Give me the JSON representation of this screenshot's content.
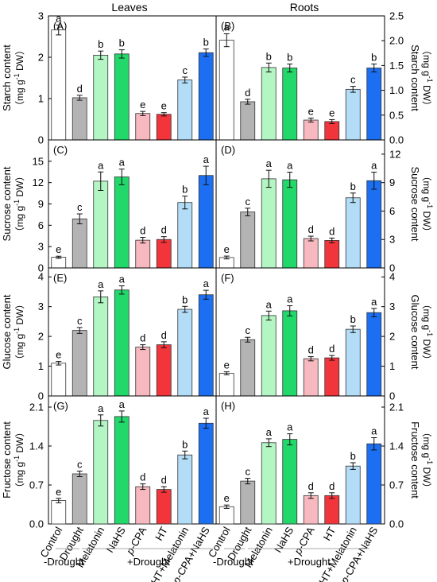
{
  "column_titles": [
    "Leaves",
    "Roots"
  ],
  "categories": [
    "Control",
    "Drought",
    "Melatonin",
    "NaHS",
    "p-CPA",
    "HT",
    "HT+Melatonin",
    "p-CPA+NaHS"
  ],
  "category_italic_prefix": [
    "",
    "",
    "",
    "",
    "p",
    "",
    "",
    "p"
  ],
  "bar_colors": [
    "#ffffff",
    "#b3b3b3",
    "#b3f5c3",
    "#22d86a",
    "#f7b9bf",
    "#f2343b",
    "#b3dcf7",
    "#1c6ff2"
  ],
  "bottom_labels": {
    "minus": "-Drought",
    "plus": "+Drought"
  },
  "chart_data": [
    {
      "type": "bar",
      "panel": "(A)",
      "organ": "Leaves",
      "ylabel": "Starch content",
      "unit_prefix": "mg g",
      "unit_exp": "-1",
      "unit_suffix": " DW",
      "ylim": [
        0,
        3.0
      ],
      "yticks": [
        0,
        1,
        2,
        3
      ],
      "tick_labels": [
        "0",
        "1",
        "2",
        "3"
      ],
      "axis_side": "left",
      "values": [
        2.66,
        1.02,
        2.05,
        2.08,
        0.64,
        0.62,
        1.45,
        2.11
      ],
      "errors": [
        0.12,
        0.06,
        0.1,
        0.1,
        0.05,
        0.04,
        0.07,
        0.09
      ],
      "letters": [
        "a",
        "d",
        "b",
        "b",
        "e",
        "e",
        "c",
        "b"
      ]
    },
    {
      "type": "bar",
      "panel": "(B)",
      "organ": "Roots",
      "ylabel": "Starch content",
      "unit_prefix": "mg g",
      "unit_exp": "-1",
      "unit_suffix": " DW",
      "ylim": [
        0,
        2.5
      ],
      "yticks": [
        0,
        0.5,
        1.0,
        1.5,
        2.0,
        2.5
      ],
      "tick_labels": [
        "0.0",
        "0.5",
        "1.0",
        "1.5",
        "2.0",
        "2.5"
      ],
      "axis_side": "right",
      "values": [
        2.01,
        0.77,
        1.46,
        1.45,
        0.4,
        0.37,
        1.02,
        1.45
      ],
      "errors": [
        0.13,
        0.05,
        0.09,
        0.08,
        0.04,
        0.04,
        0.06,
        0.08
      ],
      "letters": [
        "a",
        "d",
        "b",
        "b",
        "e",
        "e",
        "c",
        "b"
      ]
    },
    {
      "type": "bar",
      "panel": "(C)",
      "organ": "Leaves",
      "ylabel": "Sucrose content",
      "unit_prefix": "mg g",
      "unit_exp": "-1",
      "unit_suffix": " DW",
      "ylim": [
        0,
        18
      ],
      "yticks": [
        0,
        3,
        6,
        9,
        12,
        15
      ],
      "tick_labels": [
        "0",
        "3",
        "6",
        "9",
        "12",
        "15"
      ],
      "axis_side": "left",
      "values": [
        1.5,
        6.9,
        12.2,
        12.8,
        3.9,
        4.0,
        9.2,
        13.0
      ],
      "errors": [
        0.15,
        0.7,
        1.3,
        1.1,
        0.4,
        0.4,
        0.9,
        1.3
      ],
      "letters": [
        "e",
        "c",
        "a",
        "a",
        "d",
        "d",
        "b",
        "a"
      ]
    },
    {
      "type": "bar",
      "panel": "(D)",
      "organ": "Roots",
      "ylabel": "Sucrose content",
      "unit_prefix": "mg g",
      "unit_exp": "-1",
      "unit_suffix": " DW",
      "ylim": [
        0,
        13.5
      ],
      "yticks": [
        0,
        3,
        6,
        9,
        12
      ],
      "tick_labels": [
        "0",
        "3",
        "6",
        "9",
        "12"
      ],
      "axis_side": "right",
      "values": [
        1.1,
        5.9,
        9.4,
        9.3,
        3.1,
        2.9,
        7.4,
        9.2
      ],
      "errors": [
        0.15,
        0.4,
        0.9,
        0.8,
        0.25,
        0.25,
        0.5,
        0.9
      ],
      "letters": [
        "e",
        "c",
        "a",
        "a",
        "d",
        "d",
        "b",
        "a"
      ]
    },
    {
      "type": "bar",
      "panel": "(E)",
      "organ": "Leaves",
      "ylabel": "Glucose content",
      "unit_prefix": "mg g",
      "unit_exp": "-1",
      "unit_suffix": " DW",
      "ylim": [
        0,
        4.3
      ],
      "yticks": [
        0,
        1,
        2,
        3,
        4
      ],
      "tick_labels": [
        "0",
        "1",
        "2",
        "3",
        "4"
      ],
      "axis_side": "left",
      "values": [
        1.1,
        2.2,
        3.33,
        3.56,
        1.64,
        1.72,
        2.91,
        3.4
      ],
      "errors": [
        0.06,
        0.1,
        0.2,
        0.14,
        0.08,
        0.1,
        0.1,
        0.15
      ],
      "letters": [
        "e",
        "c",
        "a",
        "a",
        "d",
        "d",
        "b",
        "a"
      ]
    },
    {
      "type": "bar",
      "panel": "(F)",
      "organ": "Roots",
      "ylabel": "Glucose content",
      "unit_prefix": "mg g",
      "unit_exp": "-1",
      "unit_suffix": " DW",
      "ylim": [
        0,
        4.3
      ],
      "yticks": [
        0,
        1,
        2,
        3,
        4
      ],
      "tick_labels": [
        "0",
        "1",
        "2",
        "3",
        "4"
      ],
      "axis_side": "right",
      "values": [
        0.76,
        1.89,
        2.7,
        2.86,
        1.25,
        1.28,
        2.24,
        2.8
      ],
      "errors": [
        0.05,
        0.08,
        0.15,
        0.17,
        0.07,
        0.08,
        0.11,
        0.14
      ],
      "letters": [
        "e",
        "c",
        "a",
        "a",
        "d",
        "d",
        "b",
        "a"
      ]
    },
    {
      "type": "bar",
      "panel": "(G)",
      "organ": "Leaves",
      "ylabel": "Fructose content",
      "unit_prefix": "mg g",
      "unit_exp": "-1",
      "unit_suffix": " DW",
      "ylim": [
        0,
        2.3
      ],
      "yticks": [
        0,
        0.7,
        1.4,
        2.1
      ],
      "tick_labels": [
        "0.0",
        "0.7",
        "1.4",
        "2.1"
      ],
      "axis_side": "left",
      "values": [
        0.42,
        0.9,
        1.86,
        1.93,
        0.67,
        0.62,
        1.24,
        1.81
      ],
      "errors": [
        0.04,
        0.05,
        0.1,
        0.1,
        0.05,
        0.05,
        0.07,
        0.09
      ],
      "letters": [
        "e",
        "c",
        "a",
        "a",
        "d",
        "d",
        "b",
        "a"
      ]
    },
    {
      "type": "bar",
      "panel": "(H)",
      "organ": "Roots",
      "ylabel": "Fructose content",
      "unit_prefix": "mg g",
      "unit_exp": "-1",
      "unit_suffix": " DW",
      "ylim": [
        0,
        2.3
      ],
      "yticks": [
        0,
        0.7,
        1.4,
        2.1
      ],
      "tick_labels": [
        "0.0",
        "0.7",
        "1.4",
        "2.1"
      ],
      "axis_side": "right",
      "values": [
        0.31,
        0.77,
        1.46,
        1.52,
        0.51,
        0.51,
        1.04,
        1.44
      ],
      "errors": [
        0.03,
        0.05,
        0.07,
        0.1,
        0.05,
        0.05,
        0.06,
        0.11
      ],
      "letters": [
        "e",
        "c",
        "a",
        "a",
        "d",
        "d",
        "b",
        "a"
      ]
    }
  ]
}
